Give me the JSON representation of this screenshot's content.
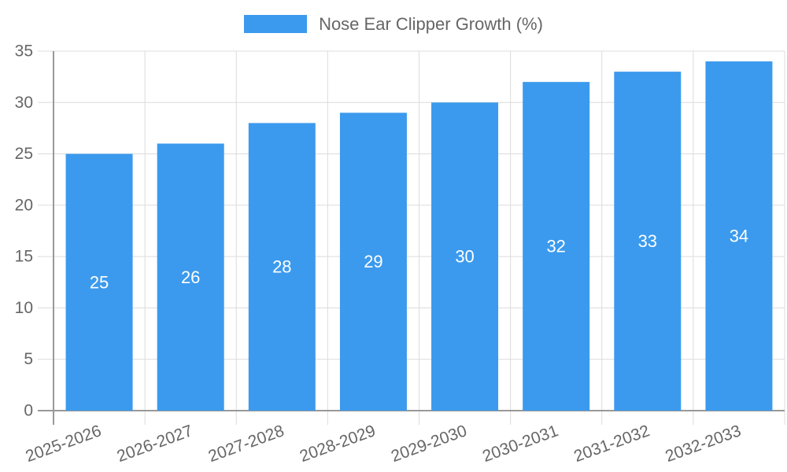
{
  "chart_data": {
    "type": "bar",
    "title": "",
    "legend": {
      "label": "Nose Ear Clipper Growth (%)",
      "position": "top"
    },
    "categories": [
      "2025-2026",
      "2026-2027",
      "2027-2028",
      "2028-2029",
      "2029-2030",
      "2030-2031",
      "2031-2032",
      "2032-2033"
    ],
    "values": [
      25,
      26,
      28,
      29,
      30,
      32,
      33,
      34
    ],
    "xlabel": "",
    "ylabel": "",
    "ylim": [
      0,
      35
    ],
    "yticks": [
      0,
      5,
      10,
      15,
      20,
      25,
      30,
      35
    ],
    "grid": true,
    "x_label_rotation_deg": -20,
    "colors": {
      "bar": "#3B9AED",
      "grid": "#DCDCDC",
      "axis": "#999999",
      "tick_text": "#666666",
      "legend_text": "#666666",
      "bar_label_text": "#FFFFFF"
    }
  }
}
